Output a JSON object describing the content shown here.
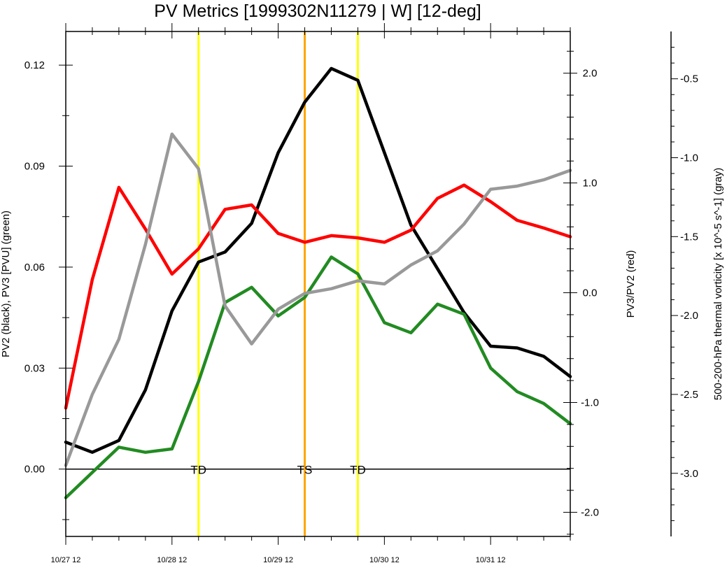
{
  "chart_data": {
    "type": "line",
    "title": "PV Metrics [1999302N11279 | W] [12-deg]",
    "x_ticks": [
      "10/27 12",
      "10/28 12",
      "10/29 12",
      "10/30 12",
      "10/31 12"
    ],
    "x_values": [
      0,
      1,
      2,
      3,
      4,
      5,
      6,
      7,
      8,
      9,
      10,
      11,
      12,
      13,
      14,
      15,
      16,
      17,
      18,
      19
    ],
    "xlim": [
      0,
      19
    ],
    "x_step_hours": 6,
    "left_axis": {
      "label": "PV2 (black), PV3 [PVU] (green)",
      "ylim": [
        -0.02,
        0.13
      ],
      "ticks": [
        0.0,
        0.03,
        0.06,
        0.09,
        0.12
      ],
      "tick_labels": [
        "0.00",
        "0.03",
        "0.06",
        "0.09",
        "0.12"
      ]
    },
    "right_axis": {
      "label": "PV3/PV2 (red)",
      "ylim": [
        -2.22,
        2.38
      ],
      "ticks": [
        -2.0,
        -1.0,
        0.0,
        1.0,
        2.0
      ],
      "tick_labels": [
        "-2.0",
        "-1.0",
        "0.0",
        "1.0",
        "2.0"
      ]
    },
    "far_right_axis": {
      "label": "500-200-hPa thermal vorticity [x 10^-5 s^-1] (gray)",
      "ylim": [
        -3.4,
        -0.2
      ],
      "ticks": [
        -3.0,
        -2.5,
        -2.0,
        -1.5,
        -1.0,
        -0.5
      ],
      "tick_labels": [
        "-3.0",
        "-2.5",
        "-2.0",
        "-1.5",
        "-1.0",
        "-0.5"
      ]
    },
    "series": [
      {
        "axis": "left",
        "color": "#000000",
        "values": [
          0.008,
          0.005,
          0.0085,
          0.0235,
          0.047,
          0.0615,
          0.0645,
          0.073,
          0.094,
          0.109,
          0.119,
          0.1155,
          0.094,
          0.0725,
          0.0595,
          0.0465,
          0.0365,
          0.036,
          0.0335,
          0.0275
        ]
      },
      {
        "axis": "left",
        "color": "#228B22",
        "values": [
          -0.0085,
          -0.001,
          0.0065,
          0.005,
          0.006,
          0.026,
          0.0495,
          0.054,
          0.0455,
          0.051,
          0.063,
          0.058,
          0.0435,
          0.0405,
          0.049,
          0.046,
          0.03,
          0.023,
          0.0195,
          0.0135
        ]
      },
      {
        "axis": "right",
        "color": "#ff0000",
        "values": [
          -1.05,
          0.12,
          0.96,
          0.58,
          0.17,
          0.4,
          0.76,
          0.8,
          0.54,
          0.46,
          0.52,
          0.5,
          0.46,
          0.57,
          0.86,
          0.98,
          0.83,
          0.66,
          0.59,
          0.51
        ]
      },
      {
        "axis": "far_right",
        "color": "#999999",
        "values": [
          -2.95,
          -2.5,
          -2.15,
          -1.55,
          -0.85,
          -1.07,
          -1.94,
          -2.18,
          -1.96,
          -1.86,
          -1.83,
          -1.78,
          -1.8,
          -1.68,
          -1.59,
          -1.42,
          -1.2,
          -1.18,
          -1.14,
          -1.08
        ]
      }
    ],
    "markers": [
      {
        "x": 5.0,
        "label": "TD",
        "color": "#ffff00"
      },
      {
        "x": 9.0,
        "label": "TS",
        "color": "#ffa500"
      },
      {
        "x": 11.0,
        "label": "TD",
        "color": "#ffff00"
      }
    ],
    "zero_line": 0.0
  }
}
